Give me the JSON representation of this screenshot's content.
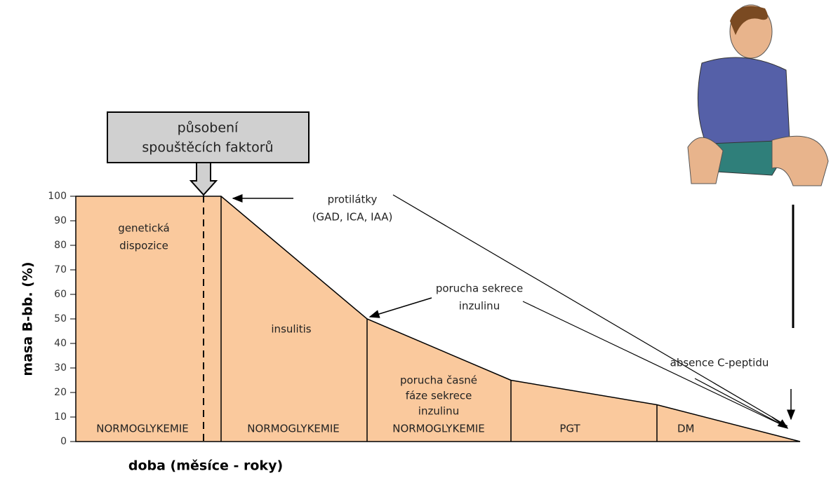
{
  "axis": {
    "title": "masa B-bb. (%)",
    "ylim": [
      0,
      100
    ],
    "yticks": [
      0,
      10,
      20,
      30,
      40,
      50,
      60,
      70,
      80,
      90,
      100
    ]
  },
  "x_title": "doba (měsíce - roky)",
  "profile": [
    100,
    100,
    50,
    25,
    15,
    0
  ],
  "trigger": [
    "působení",
    "spouštěcích faktorů"
  ],
  "regions": {
    "genetic": [
      "genetická",
      "dispozice"
    ],
    "insulitis": "insulitis",
    "early": [
      "porucha časné",
      "fáze sekrece",
      "inzulinu"
    ]
  },
  "phases": [
    "NORMOGLYKEMIE",
    "NORMOGLYKEMIE",
    "NORMOGLYKEMIE",
    "PGT",
    "DM"
  ],
  "annotations": {
    "antibodies": [
      "protilátky",
      "(GAD, ICA, IAA)"
    ],
    "secretion": [
      "porucha sekrece",
      "inzulinu"
    ],
    "cpeptide": "absence C-peptidu"
  }
}
